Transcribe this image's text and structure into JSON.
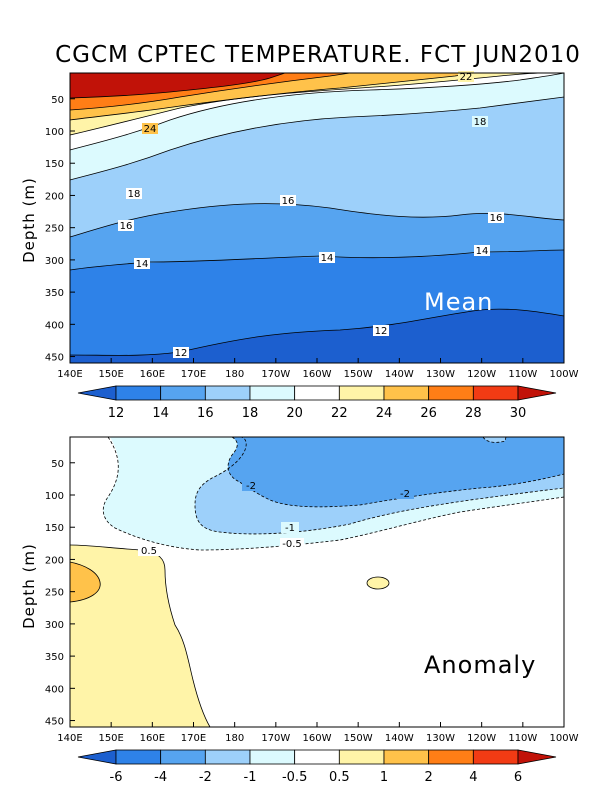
{
  "chart_data": {
    "title": "CGCM CPTEC TEMPERATURE. FCT JUN2010",
    "panels": [
      {
        "name": "mean",
        "type": "contour",
        "panel_label": "Mean",
        "ylabel": "Depth (m)",
        "x_ticks": [
          "140E",
          "150E",
          "160E",
          "170E",
          "180",
          "170W",
          "160W",
          "150W",
          "140W",
          "130W",
          "120W",
          "110W",
          "100W"
        ],
        "y_ticks": [
          "50",
          "100",
          "150",
          "200",
          "250",
          "300",
          "350",
          "400",
          "450"
        ],
        "ylim": [
          460,
          10
        ],
        "colors": [
          "#1c5fcf",
          "#2e82e8",
          "#56a4f0",
          "#9dd0fa",
          "#dcfafe",
          "#ffffff",
          "#fff4a8",
          "#ffc24a",
          "#ff7e16",
          "#f23b14",
          "#c11208"
        ],
        "colorbar_labels": [
          "12",
          "14",
          "16",
          "18",
          "20",
          "22",
          "24",
          "26",
          "28",
          "30"
        ],
        "contour_labels": [
          "22",
          "24",
          "18",
          "18",
          "16",
          "16",
          "16",
          "14",
          "14",
          "14",
          "12",
          "12"
        ]
      },
      {
        "name": "anomaly",
        "type": "contour",
        "panel_label": "Anomaly",
        "ylabel": "Depth (m)",
        "x_ticks": [
          "140E",
          "150E",
          "160E",
          "170E",
          "180",
          "170W",
          "160W",
          "150W",
          "140W",
          "130W",
          "120W",
          "110W",
          "100W"
        ],
        "y_ticks": [
          "50",
          "100",
          "150",
          "200",
          "250",
          "300",
          "350",
          "400",
          "450"
        ],
        "ylim": [
          460,
          10
        ],
        "colors": [
          "#1c5fcf",
          "#2e82e8",
          "#56a4f0",
          "#9dd0fa",
          "#dcfafe",
          "#ffffff",
          "#fff4a8",
          "#ffc24a",
          "#ff7e16",
          "#f23b14",
          "#c11208"
        ],
        "colorbar_labels": [
          "-6",
          "-4",
          "-2",
          "-1",
          "-0.5",
          "0.5",
          "1",
          "2",
          "4",
          "6"
        ],
        "contour_labels": [
          "-2",
          "-2",
          "-1",
          "-0.5",
          "0.5"
        ]
      }
    ]
  }
}
